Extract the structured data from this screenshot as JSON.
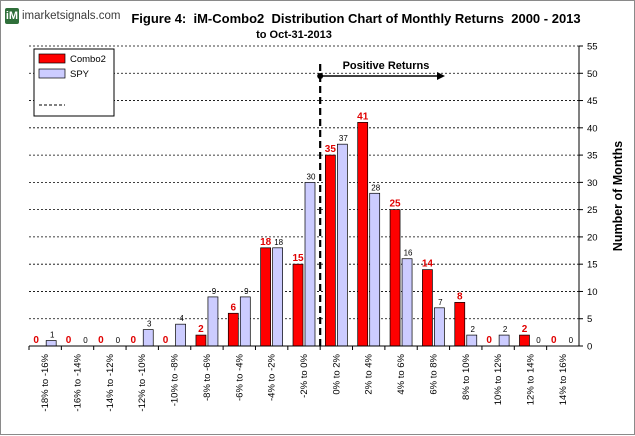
{
  "logo": {
    "mark": "iM",
    "text": "imarketsignals.com"
  },
  "chart_data": {
    "type": "bar",
    "title": "Figure 4:  iM-Combo2  Distribution Chart of Monthly Returns  2000 - 2013",
    "subtitle": "to Oct-31-2013",
    "ylabel": "Number of Months",
    "ylim": [
      0,
      55
    ],
    "yticks": [
      0,
      5,
      10,
      15,
      20,
      25,
      30,
      35,
      40,
      45,
      50,
      55
    ],
    "grid": true,
    "legend_position": "top-left",
    "categories": [
      "-18% to -16%",
      "-16% to -14%",
      "-14% to -12%",
      "-12% to -10%",
      "-10% to -8%",
      "-8% to -6%",
      "-6% to -4%",
      "-4% to -2%",
      "-2% to 0%",
      "0% to 2%",
      "2% to 4%",
      "4% to 6%",
      "6% to 8%",
      "8% to 10%",
      "10% to 12%",
      "12% to 14%",
      "14% to 16%"
    ],
    "series": [
      {
        "name": "Combo2",
        "color": "#ff0000",
        "values": [
          0,
          0,
          0,
          0,
          0,
          2,
          6,
          18,
          15,
          35,
          41,
          25,
          14,
          8,
          0,
          2,
          0
        ]
      },
      {
        "name": "SPY",
        "color": "#ccccff",
        "values": [
          1,
          0,
          0,
          3,
          4,
          9,
          9,
          18,
          30,
          37,
          28,
          16,
          7,
          2,
          2,
          0,
          0
        ]
      }
    ],
    "annotation": {
      "text": "Positive Returns",
      "divider_after_category": "-2% to 0%"
    }
  }
}
